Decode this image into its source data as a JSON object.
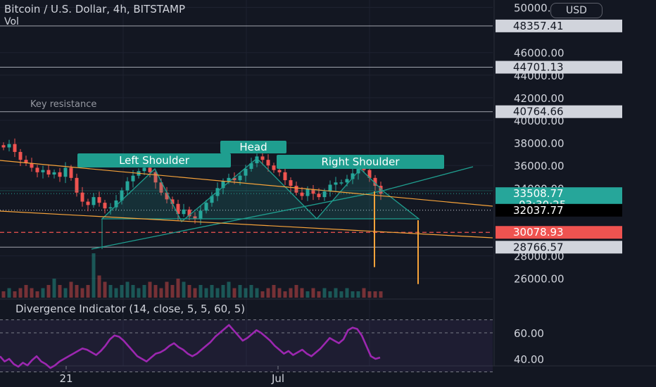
{
  "header": {
    "title": "Bitcoin / U.S. Dollar, 4h, BITSTAMP",
    "volume_label": "Vol",
    "currency_button": "USD"
  },
  "indicator": {
    "label": "Divergence Indicator (14, close, 5, 5, 60, 5)",
    "levels": [
      "60.00",
      "40.00"
    ]
  },
  "annotations": {
    "key_resistance": "Key resistance",
    "left_shoulder": "Left Shoulder",
    "head": "Head",
    "right_shoulder": "Right Shoulder"
  },
  "price_axis": {
    "ticks": [
      "50000.00",
      "46000.00",
      "44000.00",
      "42000.00",
      "40000.00",
      "38000.00",
      "36000.00",
      "34000.00",
      "28000.00",
      "26000.00"
    ],
    "labels": [
      {
        "text": "48357.41",
        "style": "light"
      },
      {
        "text": "44701.13",
        "style": "light"
      },
      {
        "text": "40764.66",
        "style": "light"
      },
      {
        "text": "33508.77",
        "sub": "03:30:25",
        "style": "teal"
      },
      {
        "text": "32037.77",
        "style": "black"
      },
      {
        "text": "30078.93",
        "style": "red"
      },
      {
        "text": "28766.57",
        "style": "light"
      }
    ]
  },
  "time_axis": {
    "labels": [
      "21",
      "Jul"
    ]
  },
  "colors": {
    "up": "#26a69a",
    "down": "#ef5350",
    "pattern": "#1f9e8f",
    "trendline": "#f7a33a",
    "oscillator": "#9c27b0",
    "background": "#131722"
  },
  "chart_data": {
    "type": "candlestick",
    "symbol": "Bitcoin / U.S. Dollar",
    "interval": "4h",
    "exchange": "BITSTAMP",
    "ylim": [
      25000,
      50500
    ],
    "current_price": 33508.77,
    "horizontal_levels": [
      48357.41,
      44701.13,
      40764.66,
      32037.77,
      30078.93,
      28766.57
    ],
    "pattern": {
      "name": "Head and Shoulders",
      "points": [
        {
          "label": "Left Shoulder",
          "price": 35800
        },
        {
          "label": "Head",
          "price": 36900
        },
        {
          "label": "Right Shoulder",
          "price": 35900
        }
      ],
      "neckline_low": 28766.57,
      "neckline_high": 36000
    },
    "targets": [
      27000,
      25500
    ],
    "close_path": [
      37600,
      37900,
      37200,
      36500,
      36200,
      35800,
      35400,
      35600,
      35200,
      35400,
      35000,
      35800,
      34900,
      33600,
      32800,
      32500,
      33200,
      32700,
      32200,
      32300,
      32900,
      33800,
      34600,
      35100,
      35500,
      35800,
      35400,
      34500,
      33600,
      33000,
      32600,
      31700,
      32100,
      31500,
      31300,
      32000,
      32700,
      33300,
      34000,
      34600,
      34900,
      34700,
      35100,
      35700,
      36200,
      36800,
      36500,
      36000,
      35600,
      35400,
      34700,
      34200,
      33600,
      33300,
      33900,
      33500,
      33200,
      33700,
      34300,
      34500,
      34500,
      34800,
      35300,
      35900,
      35600,
      34900,
      34200,
      33500
    ],
    "volume_path": [
      2,
      3,
      2,
      3,
      4,
      3,
      2,
      3,
      4,
      6,
      4,
      3,
      5,
      4,
      3,
      4,
      14,
      7,
      5,
      4,
      3,
      4,
      5,
      4,
      3,
      4,
      5,
      4,
      3,
      5,
      4,
      6,
      5,
      4,
      3,
      4,
      3,
      4,
      3,
      4,
      5,
      3,
      4,
      3,
      4,
      3,
      2,
      3,
      4,
      3,
      2,
      3,
      4,
      3,
      2,
      3,
      2,
      3,
      2,
      3,
      2,
      3,
      2,
      2,
      3,
      2,
      2,
      2
    ],
    "oscillator": {
      "name": "Divergence Indicator",
      "ylim": [
        30,
        70
      ],
      "levels": [
        60,
        40
      ],
      "values": [
        42,
        38,
        40,
        36,
        34,
        37,
        35,
        39,
        42,
        38,
        36,
        33,
        35,
        38,
        40,
        42,
        44,
        46,
        48,
        47,
        45,
        43,
        46,
        50,
        55,
        58,
        57,
        54,
        50,
        46,
        42,
        40,
        38,
        41,
        44,
        45,
        47,
        50,
        52,
        49,
        47,
        44,
        42,
        44,
        47,
        50,
        53,
        57,
        60,
        63,
        66,
        62,
        58,
        54,
        56,
        59,
        62,
        60,
        57,
        54,
        50,
        47,
        44,
        46,
        43,
        45,
        47,
        44,
        42,
        45,
        48,
        52,
        56,
        54,
        52,
        55,
        62,
        64,
        63,
        58,
        50,
        42,
        40,
        41
      ]
    }
  }
}
